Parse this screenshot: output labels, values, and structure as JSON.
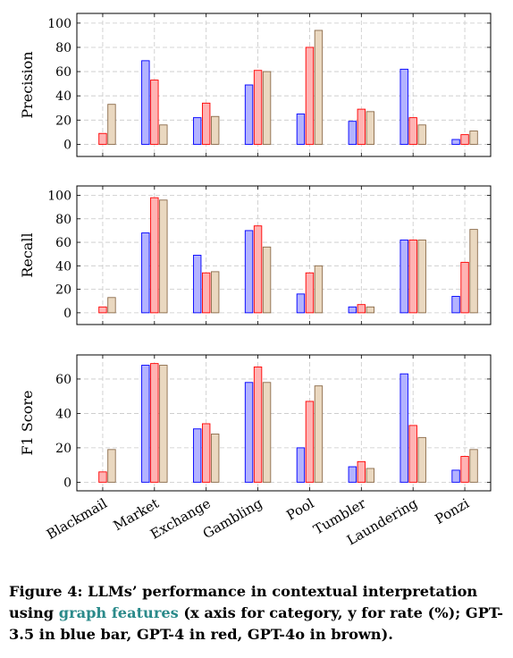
{
  "chart_data": [
    {
      "type": "bar",
      "ylabel": "Precision",
      "ylim": [
        -10,
        108
      ],
      "yticks": [
        0,
        20,
        40,
        60,
        80,
        100
      ],
      "grid": true,
      "categories": [
        "Blackmail",
        "Market",
        "Exchange",
        "Gambling",
        "Pool",
        "Tumbler",
        "Laundering",
        "Ponzi"
      ],
      "series": [
        {
          "color": "#b3b3ff",
          "stroke": "#0000ff",
          "values": [
            0,
            69,
            22,
            49,
            25,
            19,
            62,
            4
          ]
        },
        {
          "color": "#ffb3b3",
          "stroke": "#ff0000",
          "values": [
            9,
            53,
            34,
            61,
            80,
            29,
            22,
            8
          ]
        },
        {
          "color": "#ead8c0",
          "stroke": "#8b6b4a",
          "values": [
            33,
            16,
            23,
            60,
            94,
            27,
            16,
            11
          ]
        }
      ]
    },
    {
      "type": "bar",
      "ylabel": "Recall",
      "ylim": [
        -10,
        108
      ],
      "yticks": [
        0,
        20,
        40,
        60,
        80,
        100
      ],
      "grid": true,
      "categories": [
        "Blackmail",
        "Market",
        "Exchange",
        "Gambling",
        "Pool",
        "Tumbler",
        "Laundering",
        "Ponzi"
      ],
      "series": [
        {
          "color": "#b3b3ff",
          "stroke": "#0000ff",
          "values": [
            0,
            68,
            49,
            70,
            16,
            5,
            62,
            14
          ]
        },
        {
          "color": "#ffb3b3",
          "stroke": "#ff0000",
          "values": [
            5,
            98,
            34,
            74,
            34,
            7,
            62,
            43
          ]
        },
        {
          "color": "#ead8c0",
          "stroke": "#8b6b4a",
          "values": [
            13,
            96,
            35,
            56,
            40,
            5,
            62,
            71
          ]
        }
      ]
    },
    {
      "type": "bar",
      "ylabel": "F1 Score",
      "ylim": [
        -5,
        74
      ],
      "yticks": [
        0,
        20,
        40,
        60
      ],
      "grid": true,
      "categories": [
        "Blackmail",
        "Market",
        "Exchange",
        "Gambling",
        "Pool",
        "Tumbler",
        "Laundering",
        "Ponzi"
      ],
      "series": [
        {
          "color": "#b3b3ff",
          "stroke": "#0000ff",
          "values": [
            0,
            68,
            31,
            58,
            20,
            9,
            63,
            7
          ]
        },
        {
          "color": "#ffb3b3",
          "stroke": "#ff0000",
          "values": [
            6,
            69,
            34,
            67,
            47,
            12,
            33,
            15
          ]
        },
        {
          "color": "#ead8c0",
          "stroke": "#8b6b4a",
          "values": [
            19,
            68,
            28,
            58,
            56,
            8,
            26,
            19
          ]
        }
      ]
    }
  ],
  "caption": {
    "prefix": "Figure 4: LLMs’ performance in contextual interpretation using ",
    "highlight": "graph features",
    "suffix": " (x axis for category, y for rate (%); GPT-3.5 in blue bar, GPT-4 in red, GPT-4o in brown)."
  }
}
